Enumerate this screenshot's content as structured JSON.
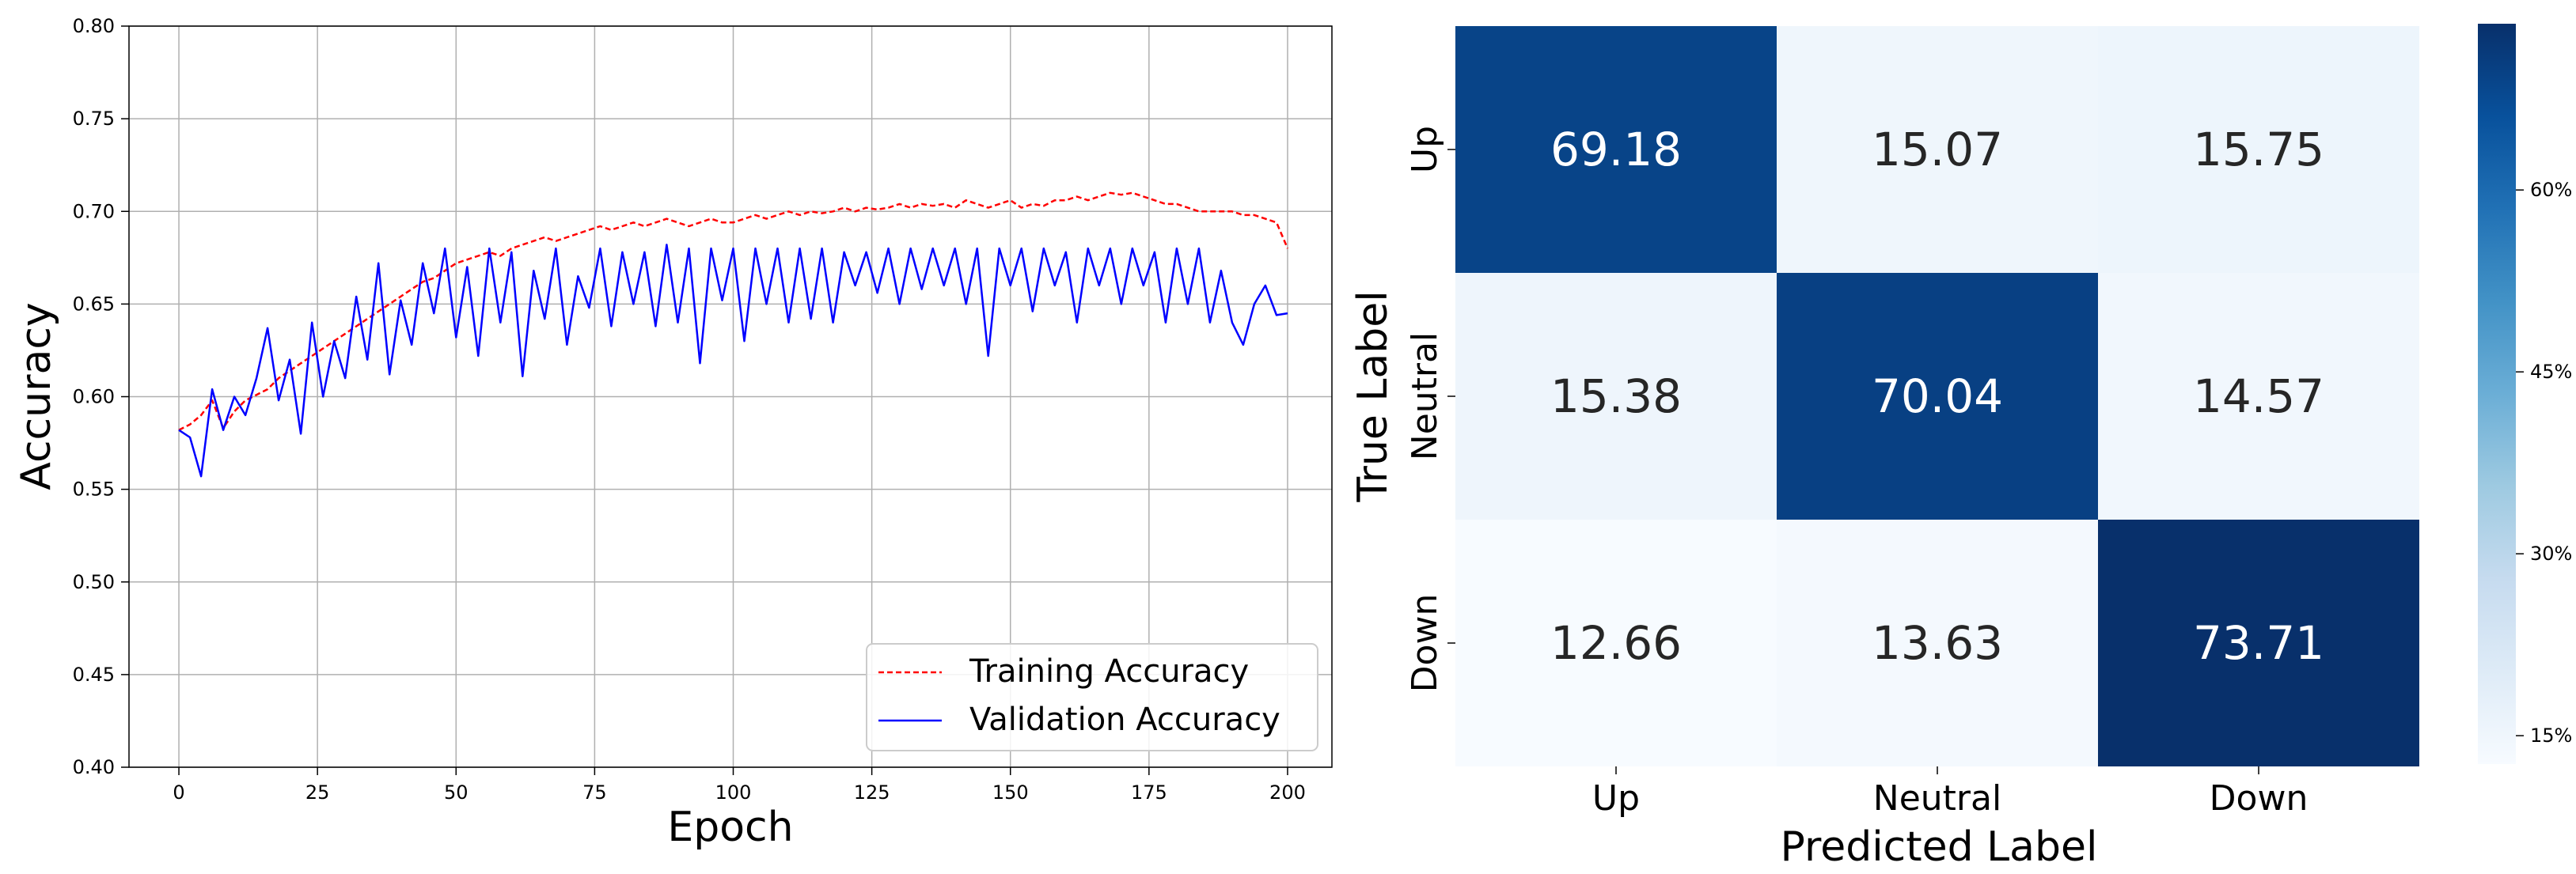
{
  "chart_data": [
    {
      "type": "line",
      "xlabel": "Epoch",
      "ylabel": "Accuracy",
      "xlim": [
        -9,
        208
      ],
      "ylim": [
        0.4,
        0.8
      ],
      "xticks": [
        "0",
        "25",
        "50",
        "75",
        "100",
        "125",
        "150",
        "175",
        "200"
      ],
      "yticks": [
        "0.40",
        "0.45",
        "0.50",
        "0.55",
        "0.60",
        "0.65",
        "0.70",
        "0.75",
        "0.80"
      ],
      "grid": true,
      "legend_position": "lower-right",
      "series": [
        {
          "name": "Training Accuracy",
          "color": "#ff0000",
          "style": "dashed",
          "x": [
            0,
            2,
            4,
            6,
            8,
            10,
            12,
            14,
            16,
            18,
            20,
            22,
            24,
            26,
            28,
            30,
            32,
            34,
            36,
            38,
            40,
            42,
            44,
            46,
            48,
            50,
            52,
            54,
            56,
            58,
            60,
            62,
            64,
            66,
            68,
            70,
            72,
            74,
            76,
            78,
            80,
            82,
            84,
            86,
            88,
            90,
            92,
            94,
            96,
            98,
            100,
            102,
            104,
            106,
            108,
            110,
            112,
            114,
            116,
            118,
            120,
            122,
            124,
            126,
            128,
            130,
            132,
            134,
            136,
            138,
            140,
            142,
            144,
            146,
            148,
            150,
            152,
            154,
            156,
            158,
            160,
            162,
            164,
            166,
            168,
            170,
            172,
            174,
            176,
            178,
            180,
            182,
            184,
            186,
            188,
            190,
            192,
            194,
            196,
            198,
            200
          ],
          "y": [
            0.582,
            0.585,
            0.59,
            0.598,
            0.583,
            0.592,
            0.598,
            0.601,
            0.604,
            0.61,
            0.614,
            0.618,
            0.622,
            0.626,
            0.63,
            0.634,
            0.638,
            0.642,
            0.646,
            0.65,
            0.654,
            0.658,
            0.662,
            0.664,
            0.668,
            0.672,
            0.674,
            0.676,
            0.678,
            0.676,
            0.68,
            0.682,
            0.684,
            0.686,
            0.684,
            0.686,
            0.688,
            0.69,
            0.692,
            0.69,
            0.692,
            0.694,
            0.692,
            0.694,
            0.696,
            0.694,
            0.692,
            0.694,
            0.696,
            0.694,
            0.694,
            0.696,
            0.698,
            0.696,
            0.698,
            0.7,
            0.698,
            0.7,
            0.699,
            0.7,
            0.702,
            0.7,
            0.702,
            0.701,
            0.702,
            0.704,
            0.702,
            0.704,
            0.703,
            0.704,
            0.702,
            0.706,
            0.704,
            0.702,
            0.704,
            0.706,
            0.702,
            0.704,
            0.703,
            0.706,
            0.706,
            0.708,
            0.706,
            0.708,
            0.71,
            0.709,
            0.71,
            0.708,
            0.706,
            0.704,
            0.704,
            0.702,
            0.7,
            0.7,
            0.7,
            0.7,
            0.698,
            0.698,
            0.696,
            0.694,
            0.68
          ]
        },
        {
          "name": "Validation Accuracy",
          "color": "#0000ff",
          "style": "solid",
          "x": [
            0,
            2,
            4,
            6,
            8,
            10,
            12,
            14,
            16,
            18,
            20,
            22,
            24,
            26,
            28,
            30,
            32,
            34,
            36,
            38,
            40,
            42,
            44,
            46,
            48,
            50,
            52,
            54,
            56,
            58,
            60,
            62,
            64,
            66,
            68,
            70,
            72,
            74,
            76,
            78,
            80,
            82,
            84,
            86,
            88,
            90,
            92,
            94,
            96,
            98,
            100,
            102,
            104,
            106,
            108,
            110,
            112,
            114,
            116,
            118,
            120,
            122,
            124,
            126,
            128,
            130,
            132,
            134,
            136,
            138,
            140,
            142,
            144,
            146,
            148,
            150,
            152,
            154,
            156,
            158,
            160,
            162,
            164,
            166,
            168,
            170,
            172,
            174,
            176,
            178,
            180,
            182,
            184,
            186,
            188,
            190,
            192,
            194,
            196,
            198,
            200
          ],
          "y": [
            0.582,
            0.578,
            0.557,
            0.604,
            0.582,
            0.6,
            0.59,
            0.61,
            0.637,
            0.598,
            0.62,
            0.58,
            0.64,
            0.6,
            0.63,
            0.61,
            0.654,
            0.62,
            0.672,
            0.612,
            0.652,
            0.628,
            0.672,
            0.645,
            0.68,
            0.632,
            0.67,
            0.622,
            0.68,
            0.64,
            0.678,
            0.611,
            0.668,
            0.642,
            0.68,
            0.628,
            0.665,
            0.648,
            0.68,
            0.638,
            0.678,
            0.65,
            0.678,
            0.638,
            0.682,
            0.64,
            0.68,
            0.618,
            0.68,
            0.652,
            0.68,
            0.63,
            0.68,
            0.65,
            0.68,
            0.64,
            0.68,
            0.642,
            0.68,
            0.64,
            0.678,
            0.66,
            0.678,
            0.656,
            0.68,
            0.65,
            0.68,
            0.658,
            0.68,
            0.66,
            0.68,
            0.65,
            0.68,
            0.622,
            0.68,
            0.66,
            0.68,
            0.646,
            0.68,
            0.66,
            0.678,
            0.64,
            0.68,
            0.66,
            0.68,
            0.65,
            0.68,
            0.66,
            0.678,
            0.64,
            0.68,
            0.65,
            0.68,
            0.64,
            0.668,
            0.64,
            0.628,
            0.65,
            0.66,
            0.644,
            0.645
          ]
        }
      ]
    },
    {
      "type": "heatmap",
      "xlabel": "Predicted Label",
      "ylabel": "True Label",
      "x_categories": [
        "Up",
        "Neutral",
        "Down"
      ],
      "y_categories": [
        "Up",
        "Neutral",
        "Down"
      ],
      "values": [
        [
          69.18,
          15.07,
          15.75
        ],
        [
          15.38,
          70.04,
          14.57
        ],
        [
          12.66,
          13.63,
          73.71
        ]
      ],
      "value_labels": [
        [
          "69.18",
          "15.07",
          "15.75"
        ],
        [
          "15.38",
          "70.04",
          "14.57"
        ],
        [
          "12.66",
          "13.63",
          "73.71"
        ]
      ],
      "colormap": "Blues",
      "vmin": 12.66,
      "vmax": 73.71,
      "colorbar_ticks": [
        15,
        30,
        45,
        60
      ],
      "colorbar_tick_labels": [
        "15%",
        "30%",
        "45%",
        "60%"
      ]
    }
  ]
}
